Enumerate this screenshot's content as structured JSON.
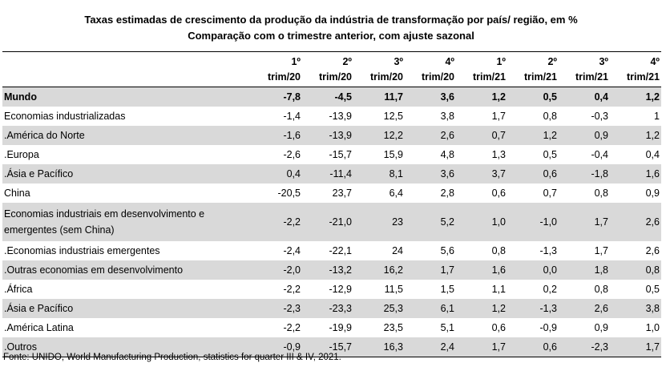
{
  "title_line1": "Taxas estimadas de crescimento da produção da indústria de transformação por país/ região, em %",
  "title_line2": "Comparação com o trimestre anterior, com ajuste sazonal",
  "columns": [
    {
      "top": "1º",
      "bottom": "trim/20"
    },
    {
      "top": "2º",
      "bottom": "trim/20"
    },
    {
      "top": "3º",
      "bottom": "trim/20"
    },
    {
      "top": "4º",
      "bottom": "trim/20"
    },
    {
      "top": "1º",
      "bottom": "trim/21"
    },
    {
      "top": "2º",
      "bottom": "trim/21"
    },
    {
      "top": "3º",
      "bottom": "trim/21"
    },
    {
      "top": "4º",
      "bottom": "trim/21"
    }
  ],
  "rows": [
    {
      "name": "Mundo",
      "values": [
        "-7,8",
        "-4,5",
        "11,7",
        "3,6",
        "1,2",
        "0,5",
        "0,4",
        "1,2"
      ]
    },
    {
      "name": "Economias industrializadas",
      "values": [
        "-1,4",
        "-13,9",
        "12,5",
        "3,8",
        "1,7",
        "0,8",
        "-0,3",
        "1"
      ]
    },
    {
      "name": ".América do Norte",
      "values": [
        "-1,6",
        "-13,9",
        "12,2",
        "2,6",
        "0,7",
        "1,2",
        "0,9",
        "1,2"
      ]
    },
    {
      "name": ".Europa",
      "values": [
        "-2,6",
        "-15,7",
        "15,9",
        "4,8",
        "1,3",
        "0,5",
        "-0,4",
        "0,4"
      ]
    },
    {
      "name": ".Ásia e Pacífico",
      "values": [
        "0,4",
        "-11,4",
        "8,1",
        "3,6",
        "3,7",
        "0,6",
        "-1,8",
        "1,6"
      ]
    },
    {
      "name": "China",
      "values": [
        "-20,5",
        "23,7",
        "6,4",
        "2,8",
        "0,6",
        "0,7",
        "0,8",
        "0,9"
      ]
    },
    {
      "name": "Economias industriais em desenvolvimento e emergentes (sem China)",
      "values": [
        "-2,2",
        "-21,0",
        "23",
        "5,2",
        "1,0",
        "-1,0",
        "1,7",
        "2,6"
      ]
    },
    {
      "name": ".Economias industriais emergentes",
      "values": [
        "-2,4",
        "-22,1",
        "24",
        "5,6",
        "0,8",
        "-1,3",
        "1,7",
        "2,6"
      ]
    },
    {
      "name": ".Outras economias em desenvolvimento",
      "values": [
        "-2,0",
        "-13,2",
        "16,2",
        "1,7",
        "1,6",
        "0,0",
        "1,8",
        "0,8"
      ]
    },
    {
      "name": ".África",
      "values": [
        "-2,2",
        "-12,9",
        "11,5",
        "1,5",
        "1,1",
        "0,2",
        "0,8",
        "0,5"
      ]
    },
    {
      "name": ".Ásia e Pacífico",
      "values": [
        "-2,3",
        "-23,3",
        "25,3",
        "6,1",
        "1,2",
        "-1,3",
        "2,6",
        "3,8"
      ]
    },
    {
      "name": ".América Latina",
      "values": [
        "-2,2",
        "-19,9",
        "23,5",
        "5,1",
        "0,6",
        "-0,9",
        "0,9",
        "1,0"
      ]
    },
    {
      "name": ".Outros",
      "values": [
        "-0,9",
        "-15,7",
        "16,3",
        "2,4",
        "1,7",
        "0,6",
        "-2,3",
        "1,7"
      ]
    }
  ],
  "source": "Fonte: UNIDO, World Manufacturing Production, statistics for quarter III & IV, 2021."
}
